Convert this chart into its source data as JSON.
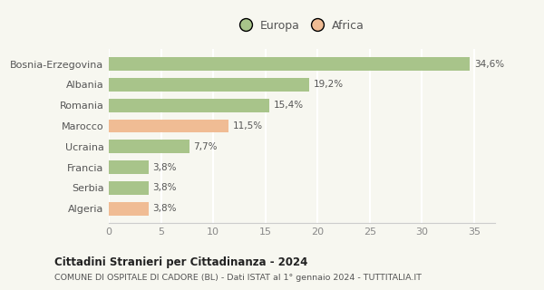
{
  "categories": [
    "Algeria",
    "Serbia",
    "Francia",
    "Ucraina",
    "Marocco",
    "Romania",
    "Albania",
    "Bosnia-Erzegovina"
  ],
  "values": [
    3.8,
    3.8,
    3.8,
    7.7,
    11.5,
    15.4,
    19.2,
    34.6
  ],
  "labels": [
    "3,8%",
    "3,8%",
    "3,8%",
    "7,7%",
    "11,5%",
    "15,4%",
    "19,2%",
    "34,6%"
  ],
  "colors": [
    "#f0bc94",
    "#a8c48a",
    "#a8c48a",
    "#a8c48a",
    "#f0bc94",
    "#a8c48a",
    "#a8c48a",
    "#a8c48a"
  ],
  "europa_color": "#a8c48a",
  "africa_color": "#f0bc94",
  "title": "Cittadini Stranieri per Cittadinanza - 2024",
  "subtitle": "COMUNE DI OSPITALE DI CADORE (BL) - Dati ISTAT al 1° gennaio 2024 - TUTTITALIA.IT",
  "xlim": [
    0,
    37
  ],
  "xticks": [
    0,
    5,
    10,
    15,
    20,
    25,
    30,
    35
  ],
  "background_color": "#f7f7f0",
  "legend_labels": [
    "Europa",
    "Africa"
  ],
  "bar_height": 0.65
}
